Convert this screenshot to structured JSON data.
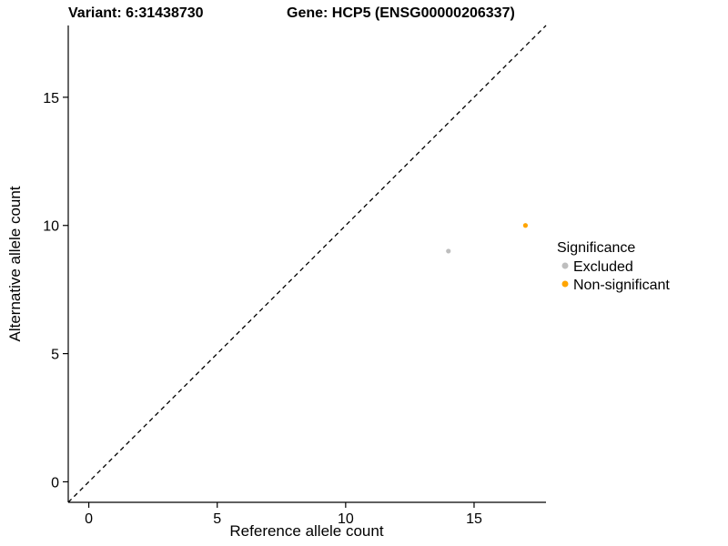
{
  "titles": {
    "variant": "Variant: 6:31438730",
    "gene": "Gene: HCP5 (ENSG00000206337)"
  },
  "chart_data": {
    "type": "scatter",
    "xlabel": "Reference allele count",
    "ylabel": "Alternative allele count",
    "xlim": [
      -0.8,
      17.8
    ],
    "ylim": [
      -0.8,
      17.8
    ],
    "xticks": [
      0,
      5,
      10,
      15
    ],
    "yticks": [
      0,
      5,
      10,
      15
    ],
    "grid": false,
    "identity_line": {
      "style": "dashed",
      "color": "#000000",
      "from": [
        -0.8,
        -0.8
      ],
      "to": [
        17.8,
        17.8
      ]
    },
    "series": [
      {
        "name": "Excluded",
        "color": "#bebebe",
        "points": [
          [
            14,
            9
          ]
        ]
      },
      {
        "name": "Non-significant",
        "color": "#ffa500",
        "points": [
          [
            17,
            10
          ]
        ]
      }
    ],
    "legend": {
      "title": "Significance",
      "position": "right"
    }
  }
}
